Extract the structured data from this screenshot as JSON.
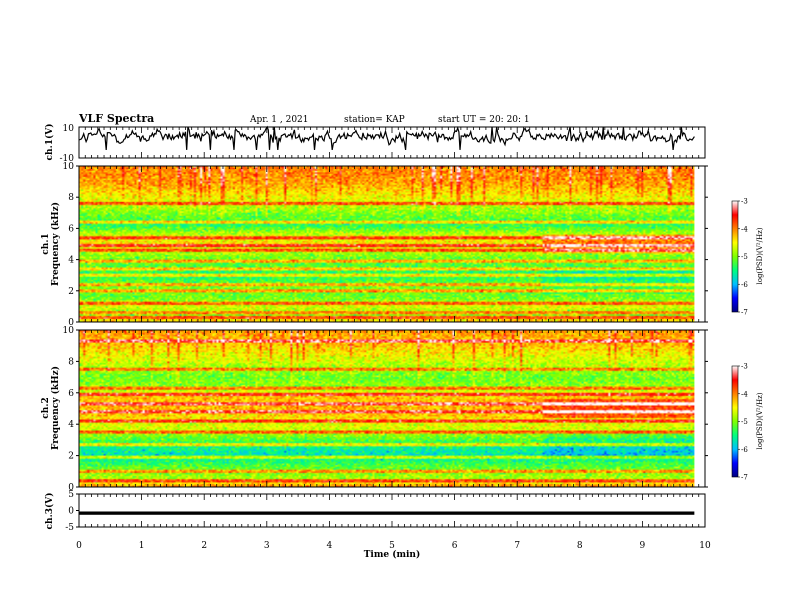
{
  "header": {
    "title": "VLF Spectra",
    "date": "Apr. 1 , 2021",
    "station": "station= KAP",
    "start_ut": "start UT =  20: 20: 1"
  },
  "colors": {
    "background": "#ffffff",
    "axes": "#000000",
    "waveform": "#000000",
    "colormap": [
      "#00007f",
      "#0000ff",
      "#00bfff",
      "#00ff7f",
      "#7fff00",
      "#ffff00",
      "#ff8000",
      "#ff0000",
      "#ffffff"
    ]
  },
  "chart_data": [
    {
      "type": "line",
      "name": "ch.1 waveform",
      "ylabel": "ch.1(V)",
      "ylim": [
        -10,
        10
      ],
      "yticks": [
        "10",
        "-10"
      ],
      "xlim": [
        0,
        10
      ],
      "x_end": 9.83,
      "level": 4,
      "noise_amplitude": 4
    },
    {
      "type": "heatmap",
      "name": "ch.1 spectrogram",
      "ylabel": "ch.1\nFrequency (kHz)",
      "ylabel_line1": "ch.1",
      "ylabel_line2": "Frequency (kHz)",
      "ylim": [
        0,
        10
      ],
      "yticks": [
        "0",
        "2",
        "4",
        "6",
        "8",
        "10"
      ],
      "xlim": [
        0,
        10
      ],
      "x_end": 9.83,
      "clim": [
        -7,
        -3
      ],
      "colorbar_label": "log(PSD)(V²/Hz)",
      "colorbar_ticks": [
        "-3",
        "-4",
        "-5",
        "-6",
        "-7"
      ],
      "band_profile_khz": [
        [
          0,
          -4.2
        ],
        [
          0.5,
          -5.0
        ],
        [
          1.0,
          -4.6
        ],
        [
          1.6,
          -5.1
        ],
        [
          2.2,
          -5.0
        ],
        [
          3.0,
          -5.4
        ],
        [
          3.5,
          -5.2
        ],
        [
          4.2,
          -5.0
        ],
        [
          5.0,
          -4.4
        ],
        [
          5.5,
          -4.6
        ],
        [
          6.2,
          -5.4
        ],
        [
          7.0,
          -5.0
        ],
        [
          8.0,
          -4.5
        ],
        [
          9.0,
          -4.1
        ],
        [
          10.0,
          -4.0
        ]
      ],
      "horizontal_lines_khz": [
        0.3,
        0.6,
        1.2,
        2.0,
        2.4,
        3.0,
        3.4,
        3.9,
        4.6,
        4.9,
        5.4,
        6.4,
        7.6
      ],
      "level_shift_time_min": 7.4
    },
    {
      "type": "heatmap",
      "name": "ch.2 spectrogram",
      "ylabel_line1": "ch.2",
      "ylabel_line2": "Frequency (kHz)",
      "ylim": [
        0,
        10
      ],
      "yticks": [
        "0",
        "2",
        "4",
        "6",
        "8",
        "10"
      ],
      "xlim": [
        0,
        10
      ],
      "x_end": 9.83,
      "clim": [
        -7,
        -3
      ],
      "colorbar_label": "log(PSD)(V²/Hz)",
      "colorbar_ticks": [
        "-3",
        "-4",
        "-5",
        "-6",
        "-7"
      ],
      "band_profile_khz": [
        [
          0,
          -4.0
        ],
        [
          0.5,
          -4.8
        ],
        [
          1.0,
          -5.0
        ],
        [
          1.5,
          -5.3
        ],
        [
          2.0,
          -5.7
        ],
        [
          2.6,
          -5.5
        ],
        [
          3.0,
          -5.2
        ],
        [
          3.6,
          -4.7
        ],
        [
          4.2,
          -4.5
        ],
        [
          4.6,
          -4.3
        ],
        [
          5.2,
          -4.2
        ],
        [
          5.8,
          -4.3
        ],
        [
          6.3,
          -4.9
        ],
        [
          7.0,
          -5.1
        ],
        [
          8.0,
          -4.7
        ],
        [
          9.0,
          -4.3
        ],
        [
          10.0,
          -4.1
        ]
      ],
      "horizontal_lines_khz": [
        0.4,
        1.0,
        1.9,
        2.7,
        3.5,
        4.2,
        4.8,
        5.3,
        5.9,
        6.3,
        7.5,
        9.3
      ],
      "level_shift_time_min": 7.4
    },
    {
      "type": "line",
      "name": "ch.3 waveform",
      "ylabel": "ch.3(V)",
      "ylim": [
        -5,
        5
      ],
      "yticks": [
        "5",
        "0",
        "-5"
      ],
      "xlim": [
        0,
        10
      ],
      "x_end": 9.83,
      "band": [
        -1.3,
        -0.3
      ]
    }
  ],
  "xaxis": {
    "label": "Time (min)",
    "ticks": [
      "0",
      "1",
      "2",
      "3",
      "4",
      "5",
      "6",
      "7",
      "8",
      "9",
      "10"
    ]
  }
}
